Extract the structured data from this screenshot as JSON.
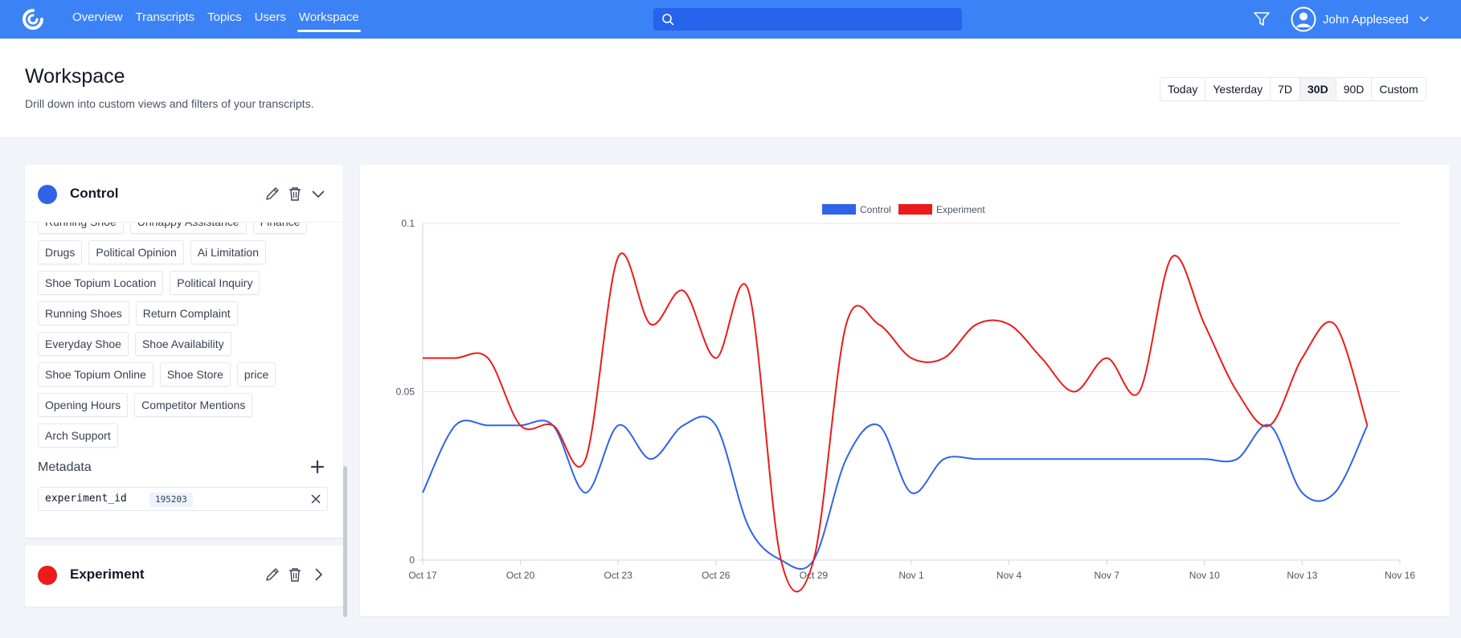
{
  "nav": {
    "items": [
      {
        "label": "Overview",
        "active": false
      },
      {
        "label": "Transcripts",
        "active": false
      },
      {
        "label": "Topics",
        "active": false
      },
      {
        "label": "Users",
        "active": false
      },
      {
        "label": "Workspace",
        "active": true
      }
    ]
  },
  "search": {
    "value": "",
    "placeholder": ""
  },
  "user": {
    "name": "John Appleseed"
  },
  "header": {
    "title": "Workspace",
    "subtitle": "Drill down into custom views and filters of your transcripts."
  },
  "date_ranges": [
    {
      "label": "Today",
      "active": false
    },
    {
      "label": "Yesterday",
      "active": false
    },
    {
      "label": "7D",
      "active": false
    },
    {
      "label": "30D",
      "active": true
    },
    {
      "label": "90D",
      "active": false
    },
    {
      "label": "Custom",
      "active": false
    }
  ],
  "groups": {
    "control": {
      "name": "Control",
      "color": "#2f63e8",
      "tag_rows": [
        [
          "Running Shoe",
          "Unhappy Assistance",
          "Finance"
        ],
        [
          "Drugs",
          "Political Opinion",
          "Ai Limitation"
        ],
        [
          "Shoe Topium Location",
          "Political Inquiry"
        ],
        [
          "Running Shoes",
          "Return Complaint"
        ],
        [
          "Everyday Shoe",
          "Shoe Availability"
        ],
        [
          "Shoe Topium Online",
          "Shoe Store",
          "price"
        ],
        [
          "Opening Hours",
          "Competitor Mentions"
        ],
        [
          "Arch Support"
        ]
      ],
      "metadata_label": "Metadata",
      "metadata": [
        {
          "key": "experiment_id",
          "value": "195203"
        }
      ]
    },
    "experiment": {
      "name": "Experiment",
      "color": "#ec1b1b"
    }
  },
  "chart_data": {
    "type": "line",
    "x": [
      "Oct 17",
      "Oct 18",
      "Oct 19",
      "Oct 20",
      "Oct 21",
      "Oct 22",
      "Oct 23",
      "Oct 24",
      "Oct 25",
      "Oct 26",
      "Oct 27",
      "Oct 28",
      "Oct 29",
      "Oct 30",
      "Oct 31",
      "Nov 1",
      "Nov 2",
      "Nov 3",
      "Nov 4",
      "Nov 5",
      "Nov 6",
      "Nov 7",
      "Nov 8",
      "Nov 9",
      "Nov 10",
      "Nov 11",
      "Nov 12",
      "Nov 13",
      "Nov 14",
      "Nov 15"
    ],
    "x_ticks": [
      "Oct 17",
      "Oct 20",
      "Oct 23",
      "Oct 26",
      "Oct 29",
      "Nov 1",
      "Nov 4",
      "Nov 7",
      "Nov 10",
      "Nov 13",
      "Nov 16"
    ],
    "y_ticks": [
      "0",
      "0.05",
      "0.1"
    ],
    "ylim": [
      0,
      0.1
    ],
    "legend_position": "top-center",
    "series": [
      {
        "name": "Control",
        "color": "#2f63e8",
        "values": [
          0.02,
          0.04,
          0.04,
          0.04,
          0.04,
          0.02,
          0.04,
          0.03,
          0.04,
          0.04,
          0.01,
          0,
          0,
          0.03,
          0.04,
          0.02,
          0.03,
          0.03,
          0.03,
          0.03,
          0.03,
          0.03,
          0.03,
          0.03,
          0.03,
          0.03,
          0.04,
          0.02,
          0.02,
          0.04
        ]
      },
      {
        "name": "Experiment",
        "color": "#ec1b1b",
        "values": [
          0.06,
          0.06,
          0.06,
          0.04,
          0.04,
          0.03,
          0.09,
          0.07,
          0.08,
          0.06,
          0.08,
          0,
          0,
          0.07,
          0.07,
          0.06,
          0.06,
          0.07,
          0.07,
          0.06,
          0.05,
          0.06,
          0.05,
          0.09,
          0.07,
          0.05,
          0.04,
          0.06,
          0.07,
          0.04
        ]
      }
    ]
  }
}
